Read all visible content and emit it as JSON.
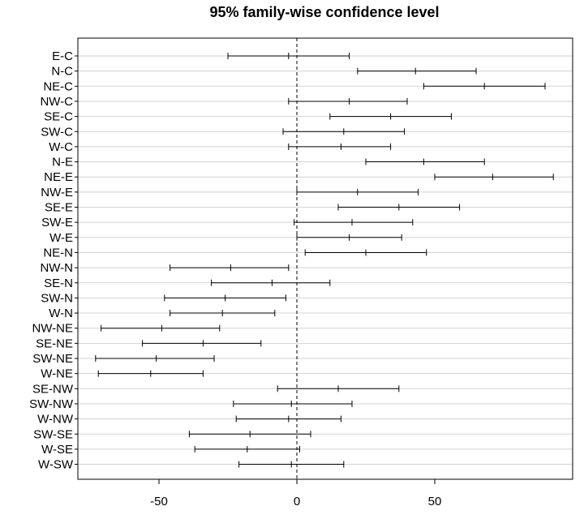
{
  "chart_data": {
    "type": "errorbar",
    "title": "95% family-wise confidence level",
    "xlabel": "",
    "ylabel": "",
    "xlim": [
      -80,
      100
    ],
    "xticks": [
      -50,
      0,
      50
    ],
    "reference_line": 0,
    "grid": "horizontal",
    "categories": [
      "E-C",
      "N-C",
      "NE-C",
      "NW-C",
      "SE-C",
      "SW-C",
      "W-C",
      "N-E",
      "NE-E",
      "NW-E",
      "SE-E",
      "SW-E",
      "W-E",
      "NE-N",
      "NW-N",
      "SE-N",
      "SW-N",
      "W-N",
      "NW-NE",
      "SE-NE",
      "SW-NE",
      "W-NE",
      "SE-NW",
      "SW-NW",
      "W-NW",
      "SW-SE",
      "W-SE",
      "W-SW"
    ],
    "intervals": [
      {
        "lwr": -25,
        "diff": -3,
        "upr": 19
      },
      {
        "lwr": 22,
        "diff": 43,
        "upr": 65
      },
      {
        "lwr": 46,
        "diff": 68,
        "upr": 90
      },
      {
        "lwr": -3,
        "diff": 19,
        "upr": 40
      },
      {
        "lwr": 12,
        "diff": 34,
        "upr": 56
      },
      {
        "lwr": -5,
        "diff": 17,
        "upr": 39
      },
      {
        "lwr": -3,
        "diff": 16,
        "upr": 34
      },
      {
        "lwr": 25,
        "diff": 46,
        "upr": 68
      },
      {
        "lwr": 50,
        "diff": 71,
        "upr": 93
      },
      {
        "lwr": 0,
        "diff": 22,
        "upr": 44
      },
      {
        "lwr": 15,
        "diff": 37,
        "upr": 59
      },
      {
        "lwr": -1,
        "diff": 20,
        "upr": 42
      },
      {
        "lwr": 0,
        "diff": 19,
        "upr": 38
      },
      {
        "lwr": 3,
        "diff": 25,
        "upr": 47
      },
      {
        "lwr": -46,
        "diff": -24,
        "upr": -3
      },
      {
        "lwr": -31,
        "diff": -9,
        "upr": 12
      },
      {
        "lwr": -48,
        "diff": -26,
        "upr": -4
      },
      {
        "lwr": -46,
        "diff": -27,
        "upr": -8
      },
      {
        "lwr": -71,
        "diff": -49,
        "upr": -28
      },
      {
        "lwr": -56,
        "diff": -34,
        "upr": -13
      },
      {
        "lwr": -73,
        "diff": -51,
        "upr": -30
      },
      {
        "lwr": -72,
        "diff": -53,
        "upr": -34
      },
      {
        "lwr": -7,
        "diff": 15,
        "upr": 37
      },
      {
        "lwr": -23,
        "diff": -2,
        "upr": 20
      },
      {
        "lwr": -22,
        "diff": -3,
        "upr": 16
      },
      {
        "lwr": -39,
        "diff": -17,
        "upr": 5
      },
      {
        "lwr": -37,
        "diff": -18,
        "upr": 1
      },
      {
        "lwr": -21,
        "diff": -2,
        "upr": 17
      }
    ]
  }
}
